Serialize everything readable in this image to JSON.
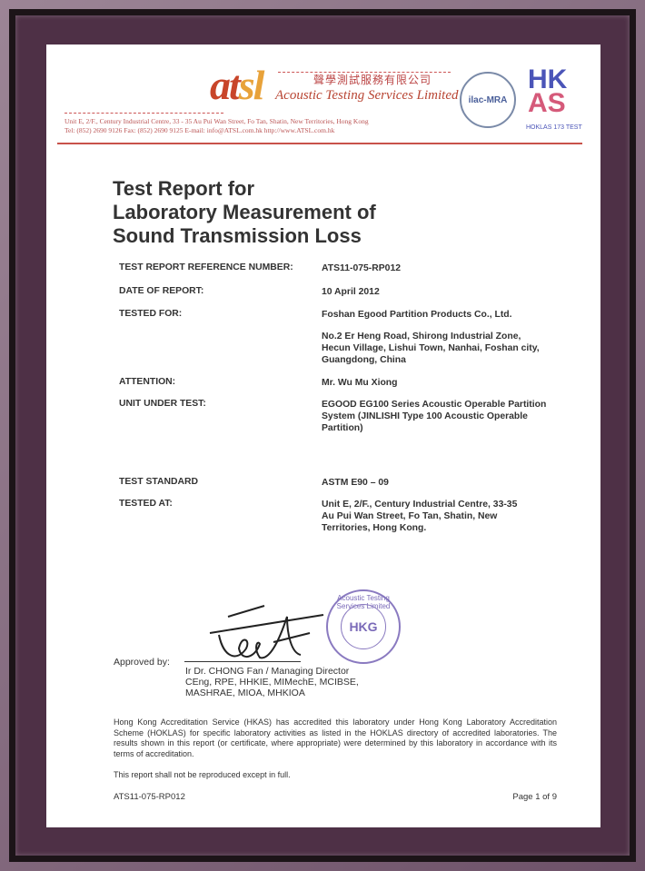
{
  "letterhead": {
    "logo": "atsl",
    "company_cn": "聲學測試服務有限公司",
    "company": "Acoustic Testing Services Limited",
    "address": "Unit E, 2/F., Century Industrial Centre, 33 - 35 Au Pui Wan Street, Fo Tan, Shatin, New Territories, Hong Kong",
    "contact": "Tel: (852) 2690 9126     Fax: (852) 2690 9125     E-mail: info@ATSL.com.hk     http://www.ATSL.com.hk",
    "ilac": "ilac-MRA",
    "hkas": "HK AS",
    "hokla_id": "HOKLAS 173 TEST",
    "accent": "#c8524a"
  },
  "title": [
    "Test Report for",
    "Laboratory Measurement of",
    "Sound Transmission Loss"
  ],
  "fields": [
    {
      "label": "TEST REPORT REFERENCE NUMBER:",
      "value": "ATS11-075-RP012"
    },
    {
      "label": "DATE OF REPORT:",
      "value": "10 April 2012"
    },
    {
      "label": "TESTED FOR:",
      "value": "Foshan Egood Partition Products Co., Ltd."
    },
    {
      "label": "",
      "value": "No.2 Er Heng Road, Shirong Industrial Zone, Hecun Village, Lishui Town, Nanhai, Foshan city, Guangdong, China"
    },
    {
      "label": "ATTENTION:",
      "value": "Mr. Wu Mu Xiong"
    },
    {
      "label": "UNIT UNDER TEST:",
      "value": "EGOOD EG100 Series Acoustic Operable Partition System (JINLISHI Type 100 Acoustic Operable Partition)"
    },
    {
      "label": "TEST STANDARD",
      "value": "ASTM E90 – 09"
    },
    {
      "label": "TESTED AT:",
      "value": "Unit E, 2/F., Century Industrial Centre, 33-35 Au Pui Wan Street, Fo Tan, Shatin, New Territories, Hong Kong."
    }
  ],
  "approval": {
    "label": "Approved by:",
    "signer": "Ir Dr. CHONG Fan / Managing Director",
    "quals1": "CEng, RPE, HHKIE, MIMechE, MCIBSE,",
    "quals2": "MASHRAE, MIOA, MHKIOA",
    "stamp_text": "Acoustic Testing Services Limited",
    "stamp_inner": "HKG"
  },
  "accreditation_note": "Hong Kong Accreditation Service (HKAS) has accredited this laboratory under Hong Kong Laboratory Accreditation Scheme (HOKLAS) for specific laboratory activities as listed in the HOKLAS directory of accredited laboratories. The results shown in this report (or certificate, where appropriate) were determined by this laboratory in accordance with its terms of accreditation.",
  "reproduction_note": "This report shall not be reproduced except in full.",
  "footer": {
    "ref": "ATS11-075-RP012",
    "page": "Page 1 of 9"
  }
}
